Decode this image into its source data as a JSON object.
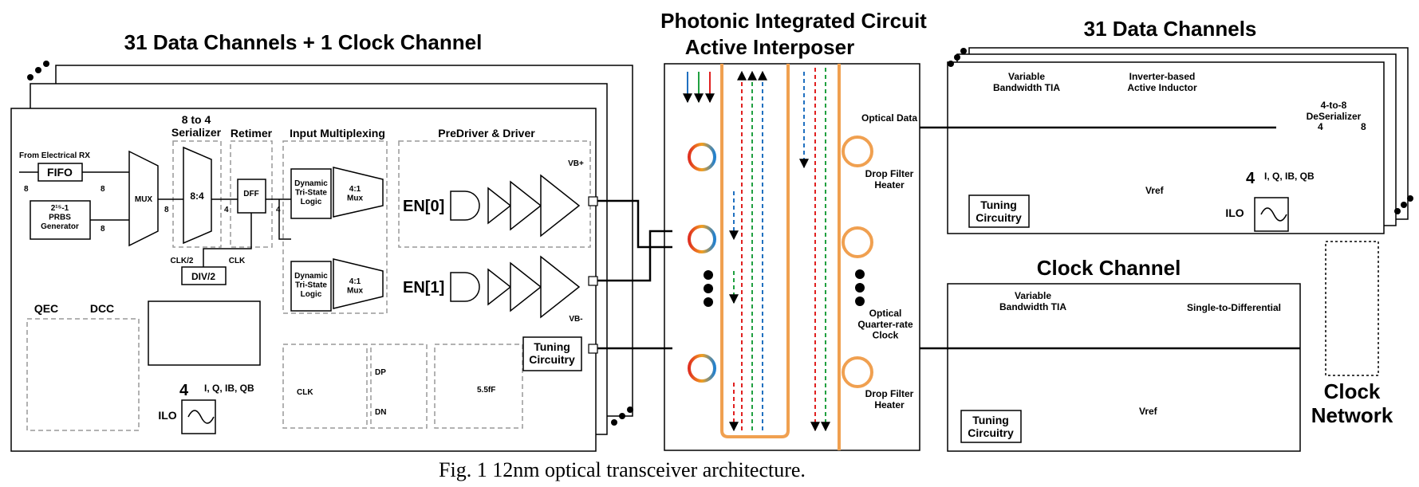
{
  "titles": {
    "left": "31 Data Channels + 1 Clock Channel",
    "pic_line1": "Photonic Integrated Circuit",
    "pic_line2": "Active Interposer",
    "rx_data": "31 Data Channels",
    "rx_clock": "Clock Channel"
  },
  "caption": "Fig. 1 12nm optical transceiver architecture.",
  "tx": {
    "serializer": "8 to 4\nSerializer",
    "retimer": "Retimer",
    "input_mux": "Input Multiplexing",
    "predriver": "PreDriver & Driver",
    "from_rx": "From Electrical RX",
    "fifo": "FIFO",
    "prbs": "2¹⁵-1\nPRBS\nGenerator",
    "mux": "MUX",
    "ser_block": "8:4",
    "dff": "DFF",
    "div2": "DIV/2",
    "clk2": "CLK/2",
    "clk": "CLK",
    "dyn_logic": "Dynamic\nTri-State\nLogic",
    "mux41": "4:1\nMux",
    "en0": "EN[0]",
    "en1": "EN[1]",
    "vbp": "VB+",
    "vbm": "VB-",
    "qec": "QEC",
    "dcc": "DCC",
    "four": "4",
    "iq": "I, Q, IB, QB",
    "ilo": "ILO",
    "tuning": "Tuning\nCircuitry",
    "bus_8": "8",
    "bus_4": "4",
    "clk_inset": "CLK",
    "dp": "DP",
    "dn": "DN",
    "cap": "5.5fF"
  },
  "pic": {
    "optical_data": "Optical Data",
    "drop_filter": "Drop Filter\nHeater",
    "optical_clock": "Optical\nQuarter-rate\nClock"
  },
  "rx": {
    "tia": "Variable\nBandwidth TIA",
    "active_inductor": "Inverter-based\nActive Inductor",
    "deser": "4-to-8\nDeSerializer",
    "four": "4",
    "eight": "8",
    "iq": "I, Q, IB, QB",
    "ilo": "ILO",
    "vref": "Vref",
    "tuning": "Tuning\nCircuitry",
    "s2d": "Single-to-Differential",
    "clock_network": "Clock\nNetwork"
  }
}
